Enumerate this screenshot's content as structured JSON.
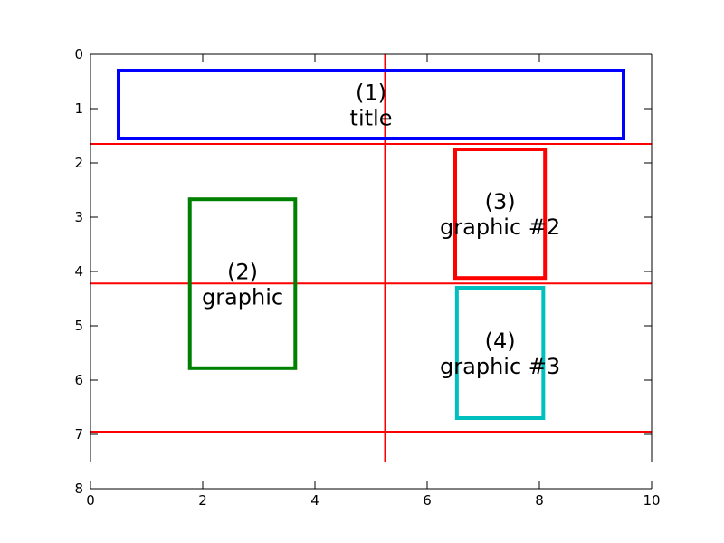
{
  "chart_data": {
    "type": "diagram",
    "xlim": [
      0,
      10
    ],
    "ylim": [
      0,
      8
    ],
    "y_inverted": true,
    "x_ticks": [
      0,
      2,
      4,
      6,
      8,
      10
    ],
    "y_ticks": [
      0,
      1,
      2,
      3,
      4,
      5,
      6,
      7,
      8
    ],
    "x_tick_labels": [
      "0",
      "2",
      "4",
      "6",
      "8",
      "10"
    ],
    "y_tick_labels": [
      "0",
      "1",
      "2",
      "3",
      "4",
      "5",
      "6",
      "7",
      "8"
    ],
    "boxes": [
      {
        "id": "title-box",
        "x0": 0.5,
        "x1": 9.5,
        "y0": 0.3,
        "y1": 1.55,
        "color": "#0000ff",
        "number": "(1)",
        "label": "title"
      },
      {
        "id": "graphic-box",
        "x0": 1.77,
        "x1": 3.65,
        "y0": 2.67,
        "y1": 5.78,
        "color": "#008000",
        "number": "(2)",
        "label": "graphic"
      },
      {
        "id": "graphic-2-box",
        "x0": 6.5,
        "x1": 8.1,
        "y0": 1.75,
        "y1": 4.12,
        "color": "#ff0000",
        "number": "(3)",
        "label": "graphic #2"
      },
      {
        "id": "graphic-3-box",
        "x0": 6.53,
        "x1": 8.07,
        "y0": 4.3,
        "y1": 6.7,
        "color": "#00bfbf",
        "number": "(4)",
        "label": "graphic #3"
      }
    ],
    "hlines": [
      1.65,
      4.22,
      6.95
    ],
    "vlines": [
      5.25
    ],
    "vline_y_range": [
      0,
      7.5
    ],
    "guide_color": "#ff0000",
    "grid": false,
    "legend": "none"
  }
}
